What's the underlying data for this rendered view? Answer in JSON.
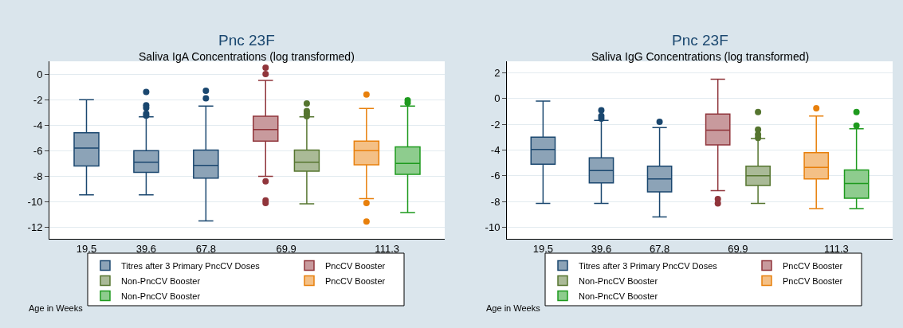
{
  "chart_data": [
    {
      "type": "box",
      "title": "Pnc 23F",
      "subtitle": "Saliva IgA Concentrations (log transformed)",
      "xlabel": "Age in Weeks",
      "categories": [
        "19.5",
        "39.6",
        "67.8",
        "69.9",
        "111.3"
      ],
      "ylim": [
        -12.9,
        1.0
      ],
      "yticks": [
        0,
        -2,
        -4,
        -6,
        -8,
        -10,
        -12
      ],
      "grid": "y",
      "legend": "bottom",
      "series": [
        {
          "name": "Titres after 3 Primary PncCV Doses",
          "color": "#1a476f",
          "boxes": [
            {
              "low": -9.45,
              "q1": -7.2,
              "median": -5.8,
              "q3": -4.6,
              "high": -2.0
            },
            {
              "low": -9.45,
              "q1": -7.7,
              "median": -6.9,
              "q3": -6.0,
              "high": -3.35,
              "outliers": [
                -1.4,
                -2.45,
                -2.65,
                -3.1,
                -3.25
              ]
            },
            {
              "low": -11.5,
              "q1": -8.15,
              "median": -7.15,
              "q3": -5.95,
              "high": -2.5,
              "outliers": [
                -1.3,
                -1.9
              ]
            },
            null,
            null
          ]
        },
        {
          "name": "PncCV Booster",
          "color": "#90353b",
          "boxes": [
            null,
            null,
            null,
            {
              "low": -8.0,
              "q1": -5.25,
              "median": -4.35,
              "q3": -3.3,
              "high": -0.5,
              "outliers": [
                0.5,
                0.0,
                -8.4,
                -9.9,
                -10.1
              ]
            },
            null
          ]
        },
        {
          "name": "Non-PncCV Booster",
          "color": "#55752f",
          "boxes": [
            null,
            null,
            null,
            {
              "low": -10.15,
              "q1": -7.6,
              "median": -6.9,
              "q3": -5.95,
              "high": -3.35,
              "outliers": [
                -2.3,
                -2.9,
                -3.1,
                -3.3
              ]
            },
            null
          ]
        },
        {
          "name": "PncCV Booster",
          "color": "#e8800c",
          "boxes": [
            null,
            null,
            null,
            null,
            {
              "low": -9.75,
              "q1": -7.1,
              "median": -6.0,
              "q3": -5.25,
              "high": -2.7,
              "outliers": [
                -1.6,
                -10.1,
                -11.55
              ]
            }
          ]
        },
        {
          "name": "Non-PncCV Booster",
          "color": "#1e9a1e",
          "boxes": [
            null,
            null,
            null,
            null,
            {
              "low": -10.85,
              "q1": -7.85,
              "median": -7.0,
              "q3": -5.7,
              "high": -2.5,
              "outliers": [
                -2.05,
                -2.25
              ]
            }
          ]
        }
      ]
    },
    {
      "type": "box",
      "title": "Pnc 23F",
      "subtitle": "Saliva IgG Concentrations (log transformed)",
      "xlabel": "Age in Weeks",
      "categories": [
        "19.5",
        "39.6",
        "67.8",
        "69.9",
        "111.3"
      ],
      "ylim": [
        -10.9,
        2.9
      ],
      "yticks": [
        2,
        0,
        -2,
        -4,
        -6,
        -8,
        -10
      ],
      "grid": "y",
      "legend": "bottom",
      "series": [
        {
          "name": "Titres after 3 Primary PncCV Doses",
          "color": "#1a476f",
          "boxes": [
            {
              "low": -8.15,
              "q1": -5.1,
              "median": -3.95,
              "q3": -3.0,
              "high": -0.2
            },
            {
              "low": -8.15,
              "q1": -6.55,
              "median": -5.6,
              "q3": -4.6,
              "high": -1.7,
              "outliers": [
                -0.9,
                -1.35,
                -1.55
              ]
            },
            {
              "low": -9.2,
              "q1": -7.25,
              "median": -6.25,
              "q3": -5.25,
              "high": -2.25,
              "outliers": [
                -1.8
              ]
            },
            null,
            null
          ]
        },
        {
          "name": "PncCV Booster",
          "color": "#90353b",
          "boxes": [
            null,
            null,
            null,
            {
              "low": -7.15,
              "q1": -3.6,
              "median": -2.45,
              "q3": -1.2,
              "high": 1.5,
              "outliers": [
                -7.8,
                -8.15
              ]
            },
            null
          ]
        },
        {
          "name": "Non-PncCV Booster",
          "color": "#55752f",
          "boxes": [
            null,
            null,
            null,
            {
              "low": -8.15,
              "q1": -6.75,
              "median": -6.0,
              "q3": -5.25,
              "high": -3.1,
              "outliers": [
                -1.05,
                -2.4,
                -2.8,
                -3.05
              ]
            },
            null
          ]
        },
        {
          "name": "PncCV Booster",
          "color": "#e8800c",
          "boxes": [
            null,
            null,
            null,
            null,
            {
              "low": -8.55,
              "q1": -6.25,
              "median": -5.35,
              "q3": -4.2,
              "high": -1.35,
              "outliers": [
                -0.75
              ]
            }
          ]
        },
        {
          "name": "Non-PncCV Booster",
          "color": "#1e9a1e",
          "boxes": [
            null,
            null,
            null,
            null,
            {
              "low": -8.55,
              "q1": -7.75,
              "median": -6.6,
              "q3": -5.55,
              "high": -2.35,
              "outliers": [
                -1.05,
                -2.1
              ]
            }
          ]
        }
      ]
    }
  ]
}
